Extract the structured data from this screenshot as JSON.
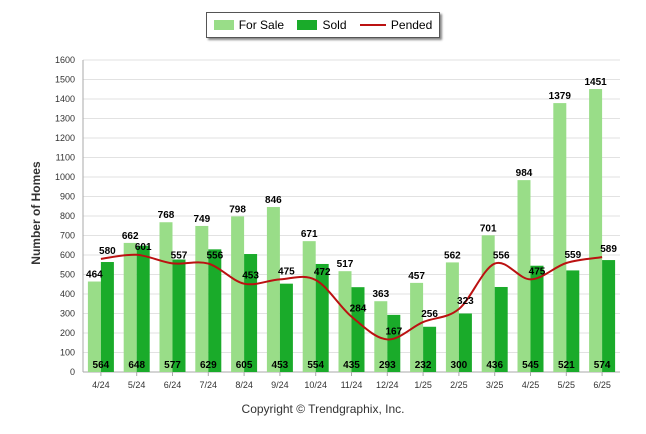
{
  "chart_data": {
    "type": "bar",
    "title": "",
    "xlabel": "",
    "ylabel": "Number of Homes",
    "ylim": [
      0,
      1600
    ],
    "yticks": [
      0,
      100,
      200,
      300,
      400,
      500,
      600,
      700,
      800,
      900,
      1000,
      1100,
      1200,
      1300,
      1400,
      1500,
      1600
    ],
    "grid": true,
    "legend_position": "top-center",
    "categories": [
      "4/24",
      "5/24",
      "6/24",
      "7/24",
      "8/24",
      "9/24",
      "10/24",
      "11/24",
      "12/24",
      "1/25",
      "2/25",
      "3/25",
      "4/25",
      "5/25",
      "6/25"
    ],
    "series": [
      {
        "name": "For Sale",
        "type": "bar",
        "color": "#99dd88",
        "values": [
          464,
          662,
          768,
          749,
          798,
          846,
          671,
          517,
          363,
          457,
          562,
          701,
          984,
          1379,
          1451
        ]
      },
      {
        "name": "Sold",
        "type": "bar",
        "color": "#1aab2a",
        "values": [
          564,
          648,
          577,
          629,
          605,
          453,
          554,
          435,
          293,
          232,
          300,
          436,
          545,
          521,
          574
        ]
      },
      {
        "name": "Pended",
        "type": "line",
        "color": "#bb1111",
        "values": [
          580,
          601,
          557,
          556,
          453,
          475,
          472,
          284,
          167,
          256,
          323,
          556,
          475,
          559,
          589
        ]
      }
    ]
  },
  "footer": "Copyright © Trendgraphix, Inc."
}
